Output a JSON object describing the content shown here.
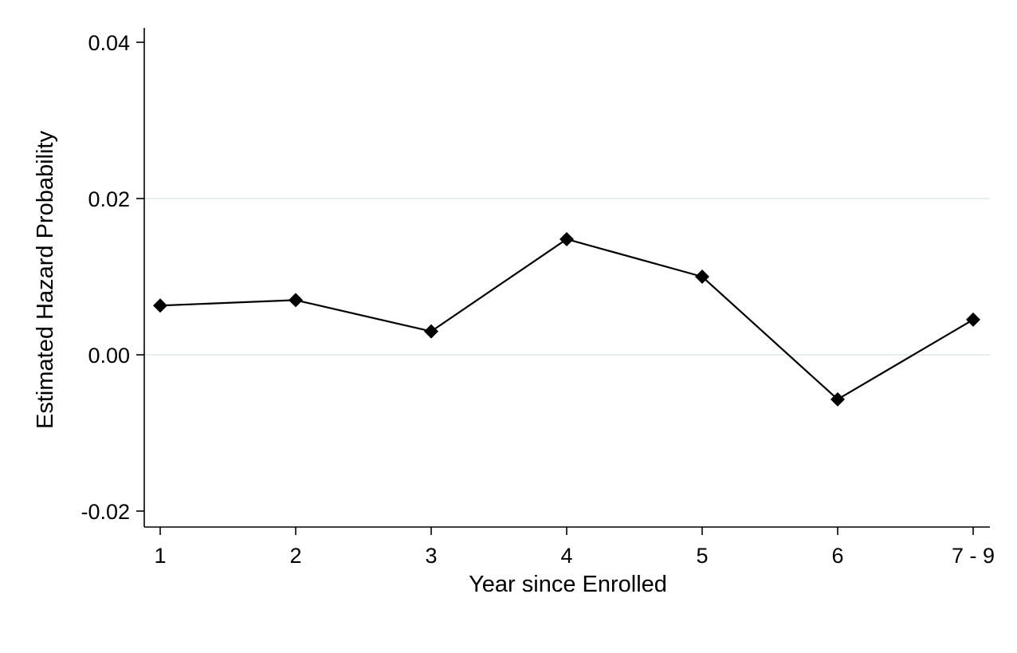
{
  "chart_data": {
    "type": "line",
    "title": "",
    "xlabel": "Year since Enrolled",
    "ylabel": "Estimated Hazard Probability",
    "categories": [
      "1",
      "2",
      "3",
      "4",
      "5",
      "6",
      "7 - 9"
    ],
    "series": [
      {
        "values": [
          0.0063,
          0.007,
          0.003,
          0.0148,
          0.01,
          -0.0057,
          0.0045
        ]
      }
    ],
    "ylim": [
      -0.022,
      0.0415
    ],
    "yticks": [
      -0.02,
      0.0,
      0.02,
      0.04
    ],
    "ytick_labels": [
      "-0.02",
      "0.00",
      "0.02",
      "0.04"
    ],
    "grid": "horizontal",
    "marker": "diamond",
    "colors": {
      "line": "#000000",
      "grid": "#e8eded",
      "axis": "#000000"
    }
  }
}
